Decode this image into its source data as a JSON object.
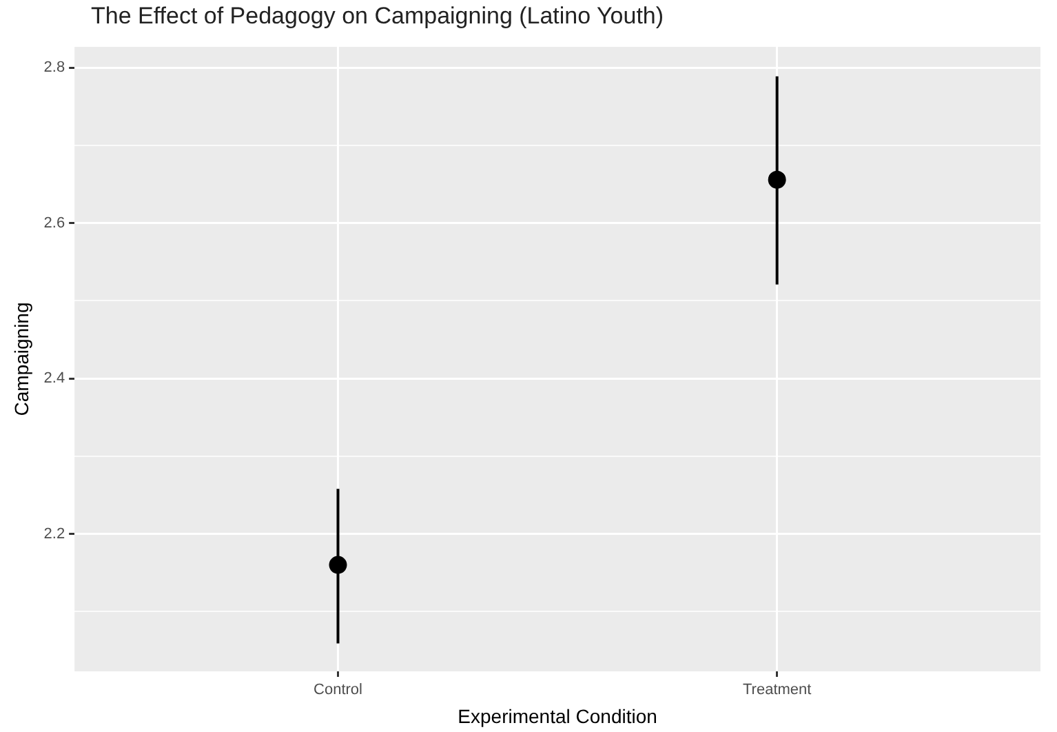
{
  "chart_data": {
    "type": "scatter",
    "title": "The Effect of Pedagogy on Campaigning (Latino Youth)",
    "xlabel": "Experimental Condition",
    "ylabel": "Campaigning",
    "categories": [
      "Control",
      "Treatment"
    ],
    "series": [
      {
        "color": "#000000",
        "values": [
          2.16,
          2.656
        ],
        "errors": [
          [
            2.059,
            2.258
          ],
          [
            2.521,
            2.789
          ]
        ]
      }
    ],
    "ylim": [
      2.023,
      2.827
    ],
    "yticks": [
      {
        "value": 2.1,
        "label": null
      },
      2.2,
      {
        "value": 2.3,
        "label": null
      },
      2.4,
      {
        "value": 2.5,
        "label": null
      },
      2.6,
      {
        "value": 2.7,
        "label": null
      },
      2.8
    ],
    "grid": true,
    "marker": "circle"
  }
}
